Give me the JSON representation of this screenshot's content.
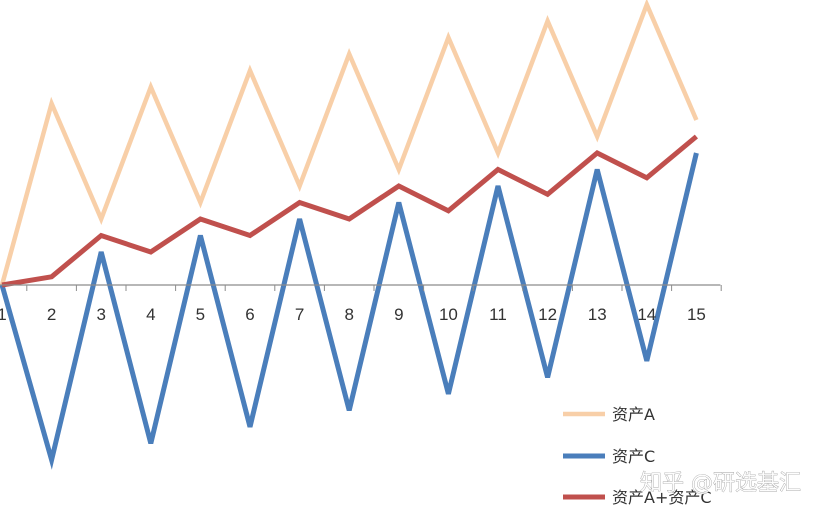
{
  "chart_data": {
    "type": "line",
    "categories": [
      "1",
      "2",
      "3",
      "4",
      "5",
      "6",
      "7",
      "8",
      "9",
      "10",
      "11",
      "12",
      "13",
      "14",
      "15"
    ],
    "ylim": [
      -11,
      18
    ],
    "grid": false,
    "legend_position": "bottom-right",
    "series": [
      {
        "name": "资产A",
        "color": "#f8cfa8",
        "values": [
          0,
          11,
          4,
          12,
          5,
          13,
          6,
          14,
          7,
          15,
          8,
          16,
          9,
          17,
          10
        ]
      },
      {
        "name": "资产C",
        "color": "#4a7ebb",
        "values": [
          0,
          -10.6,
          2,
          -9.6,
          3,
          -8.6,
          4,
          -7.6,
          5,
          -6.6,
          6,
          -5.6,
          7,
          -4.6,
          8
        ]
      },
      {
        "name": "资产A+资产C",
        "color": "#c0504d",
        "values": [
          0,
          0.5,
          3,
          2,
          4,
          3,
          5,
          4,
          6,
          4.5,
          7,
          5.5,
          8,
          6.5,
          9
        ]
      }
    ]
  },
  "watermark": "知乎 @研选基汇"
}
